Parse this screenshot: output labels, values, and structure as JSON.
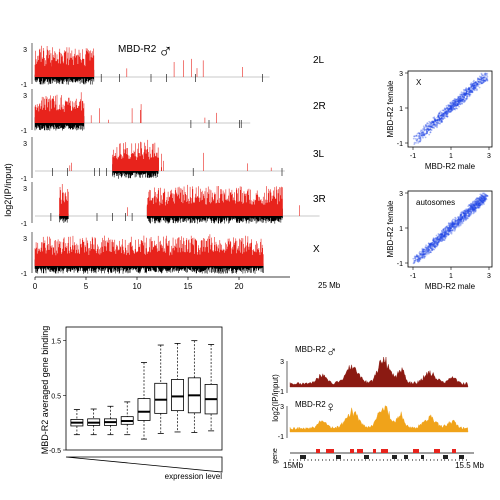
{
  "panel_a": {
    "title": "MBD-R2",
    "title_symbol": "♂",
    "ylabel": "log2(IP/input)",
    "tracks": [
      {
        "arm": "2L",
        "ticks": [
          "3",
          "-1"
        ]
      },
      {
        "arm": "2R",
        "ticks": [
          "3",
          "-1"
        ]
      },
      {
        "arm": "3L",
        "ticks": [
          "3",
          "-1"
        ]
      },
      {
        "arm": "3R",
        "ticks": [
          "3",
          "-1"
        ]
      },
      {
        "arm": "X",
        "ticks": [
          "3",
          "-1"
        ]
      }
    ],
    "x_ticks": [
      "0",
      "5",
      "10",
      "15",
      "20"
    ],
    "x_end_label": "25 Mb",
    "colors": {
      "above": "#e8231c",
      "below": "#000000",
      "baseline": "#b9b9b9"
    }
  },
  "scatter_x": {
    "label": "X",
    "xlabel": "MBD-R2 male",
    "ylabel": "MBD-R2 female",
    "x_ticks": [
      "-1",
      "1",
      "3"
    ],
    "y_ticks": [
      "-1",
      "1",
      "3"
    ],
    "color": "#1f44e6"
  },
  "scatter_auto": {
    "label": "autosomes",
    "xlabel": "MBD-R2 male",
    "ylabel": "MBD-R2 female",
    "x_ticks": [
      "-1",
      "1",
      "3"
    ],
    "y_ticks": [
      "-1",
      "1",
      "3"
    ],
    "color": "#1f44e6"
  },
  "chart_data": [
    {
      "type": "box",
      "ylabel": "MBD-R2 averaged gene binding",
      "xlabel": "expression level",
      "y_ticks": [
        "-0.5",
        "0.5",
        "1.5"
      ],
      "ylim": [
        -0.5,
        1.75
      ],
      "boxes": [
        {
          "whisker_low": -0.22,
          "q1": -0.06,
          "median": 0.0,
          "q3": 0.06,
          "whisker_high": 0.24
        },
        {
          "whisker_low": -0.22,
          "q1": -0.05,
          "median": 0.0,
          "q3": 0.07,
          "whisker_high": 0.25
        },
        {
          "whisker_low": -0.22,
          "q1": -0.05,
          "median": 0.01,
          "q3": 0.07,
          "whisker_high": 0.3
        },
        {
          "whisker_low": -0.22,
          "q1": -0.03,
          "median": 0.03,
          "q3": 0.11,
          "whisker_high": 0.38
        },
        {
          "whisker_low": -0.3,
          "q1": 0.04,
          "median": 0.2,
          "q3": 0.44,
          "whisker_high": 1.1
        },
        {
          "whisker_low": -0.2,
          "q1": 0.17,
          "median": 0.42,
          "q3": 0.72,
          "whisker_high": 1.42
        },
        {
          "whisker_low": -0.17,
          "q1": 0.22,
          "median": 0.48,
          "q3": 0.79,
          "whisker_high": 1.45
        },
        {
          "whisker_low": -0.18,
          "q1": 0.18,
          "median": 0.5,
          "q3": 0.82,
          "whisker_high": 1.5
        },
        {
          "whisker_low": -0.15,
          "q1": 0.16,
          "median": 0.43,
          "q3": 0.7,
          "whisker_high": 1.43
        }
      ]
    }
  ],
  "panel_d": {
    "ylabel": "log2(IP/input)",
    "track_male": {
      "label": "MBD-R2",
      "symbol": "♂",
      "ticks": [
        "3",
        "-1"
      ],
      "color": "#8b1a12"
    },
    "track_female": {
      "label": "MBD-R2",
      "symbol": "♀",
      "ticks": [
        "3",
        "-1"
      ],
      "color": "#f0a31a"
    },
    "gene_label": "gene",
    "x_left": "15Mb",
    "x_right": "15.5 Mb"
  }
}
